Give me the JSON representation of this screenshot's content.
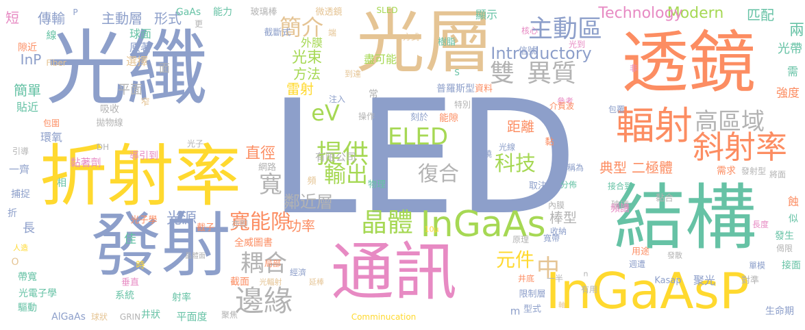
{
  "palette": {
    "blue": "#8d9fca",
    "green": "#66c2a5",
    "orange": "#fc8d62",
    "pink": "#e78ac3",
    "lime": "#a6d854",
    "yellow": "#ffd92f",
    "tan": "#e5c494",
    "gray": "#b3b3b3"
  },
  "words": [
    {
      "text": "LED",
      "c": "blue"
    },
    {
      "text": "光纖",
      "c": "blue"
    },
    {
      "text": "光層",
      "c": "tan"
    },
    {
      "text": "透鏡",
      "c": "orange"
    },
    {
      "text": "發射",
      "c": "blue"
    },
    {
      "text": "折射率",
      "c": "yellow"
    },
    {
      "text": "結構",
      "c": "green"
    },
    {
      "text": "通訊",
      "c": "pink"
    },
    {
      "text": "InGaAsP",
      "c": "yellow"
    },
    {
      "text": "輻射",
      "c": "orange"
    },
    {
      "text": "InGaAs",
      "c": "lime"
    },
    {
      "text": "斜射率",
      "c": "orange"
    },
    {
      "text": "邊緣",
      "c": "gray"
    },
    {
      "text": "主動區",
      "c": "blue"
    },
    {
      "text": "異質",
      "c": "gray"
    },
    {
      "text": "雙",
      "c": "gray"
    },
    {
      "text": "提供",
      "c": "lime"
    },
    {
      "text": "高區域",
      "c": "gray"
    },
    {
      "text": "晶體",
      "c": "lime"
    },
    {
      "text": "耦合",
      "c": "gray"
    },
    {
      "text": "寬能隙",
      "c": "orange"
    },
    {
      "text": "復合",
      "c": "gray"
    },
    {
      "text": "輸出",
      "c": "lime"
    },
    {
      "text": "eV",
      "c": "lime"
    },
    {
      "text": "ELED",
      "c": "lime"
    },
    {
      "text": "科技",
      "c": "lime"
    },
    {
      "text": "簡介",
      "c": "tan"
    },
    {
      "text": "元件",
      "c": "yellow"
    },
    {
      "text": "Modern",
      "c": "lime"
    },
    {
      "text": "Technology",
      "c": "pink"
    },
    {
      "text": "Introductory",
      "c": "blue"
    },
    {
      "text": "主動層",
      "c": "blue"
    },
    {
      "text": "形式",
      "c": "blue"
    },
    {
      "text": "傳輸",
      "c": "blue"
    },
    {
      "text": "匹配",
      "c": "green"
    },
    {
      "text": "光束",
      "c": "lime"
    },
    {
      "text": "方法",
      "c": "lime"
    },
    {
      "text": "雷射",
      "c": "yellow"
    },
    {
      "text": "外膜",
      "c": "lime"
    },
    {
      "text": "鄰近層",
      "c": "gray"
    },
    {
      "text": "功率",
      "c": "orange"
    },
    {
      "text": "直徑",
      "c": "orange"
    },
    {
      "text": "光源",
      "c": "blue"
    },
    {
      "text": "寬",
      "c": "gray"
    },
    {
      "text": "中",
      "c": "tan"
    },
    {
      "text": "棒型",
      "c": "gray"
    },
    {
      "text": "距離",
      "c": "orange"
    },
    {
      "text": "典型",
      "c": "orange"
    },
    {
      "text": "二極體",
      "c": "orange"
    },
    {
      "text": "短",
      "c": "pink"
    },
    {
      "text": "簡單",
      "c": "green"
    },
    {
      "text": "InP",
      "c": "blue"
    },
    {
      "text": "平面",
      "c": "gray"
    },
    {
      "text": "兩",
      "c": "green"
    },
    {
      "text": "光帶",
      "c": "green"
    },
    {
      "text": "強度",
      "c": "orange"
    },
    {
      "text": "需",
      "c": "green"
    },
    {
      "text": "盡可能",
      "c": "lime"
    },
    {
      "text": "顯示",
      "c": "green"
    },
    {
      "text": "GaAs",
      "c": "green"
    },
    {
      "text": "能力",
      "c": "green"
    },
    {
      "text": "玻璃棒",
      "c": "gray"
    },
    {
      "text": "微透鏡",
      "c": "tan"
    },
    {
      "text": "SLED",
      "c": "lime"
    },
    {
      "text": "樹脂",
      "c": "green"
    },
    {
      "text": "球面",
      "c": "green"
    },
    {
      "text": "原著",
      "c": "blue"
    },
    {
      "text": "選擇",
      "c": "tan"
    },
    {
      "text": "面",
      "c": "gray"
    },
    {
      "text": "線",
      "c": "green"
    },
    {
      "text": "隙近",
      "c": "orange"
    },
    {
      "text": "貼近",
      "c": "green"
    },
    {
      "text": "吸收",
      "c": "gray"
    },
    {
      "text": "窄",
      "c": "tan"
    },
    {
      "text": "拋物線",
      "c": "gray"
    },
    {
      "text": "包圍",
      "c": "orange"
    },
    {
      "text": "環氧",
      "c": "blue"
    },
    {
      "text": "引導",
      "c": "gray"
    },
    {
      "text": "導引到",
      "c": "pink"
    },
    {
      "text": "黏著劑",
      "c": "pink"
    },
    {
      "text": "一齊",
      "c": "blue"
    },
    {
      "text": "相",
      "c": "green"
    },
    {
      "text": "捕捉",
      "c": "blue"
    },
    {
      "text": "折",
      "c": "blue"
    },
    {
      "text": "長",
      "c": "blue"
    },
    {
      "text": "佳",
      "c": "green"
    },
    {
      "text": "人造",
      "c": "yellow"
    },
    {
      "text": "O",
      "c": "tan"
    },
    {
      "text": "帶寬",
      "c": "green"
    },
    {
      "text": "時",
      "c": "yellow"
    },
    {
      "text": "光電子學",
      "c": "green"
    },
    {
      "text": "垂直",
      "c": "pink"
    },
    {
      "text": "系統",
      "c": "green"
    },
    {
      "text": "驅動",
      "c": "green"
    },
    {
      "text": "AlGaAs",
      "c": "blue"
    },
    {
      "text": "球狀",
      "c": "tan"
    },
    {
      "text": "GRIN",
      "c": "gray"
    },
    {
      "text": "井狀",
      "c": "green"
    },
    {
      "text": "射率",
      "c": "green"
    },
    {
      "text": "平面度",
      "c": "green"
    },
    {
      "text": "聚焦",
      "c": "gray"
    },
    {
      "text": "光子學",
      "c": "orange"
    },
    {
      "text": "光子",
      "c": "gray"
    },
    {
      "text": "DH",
      "c": "gray"
    },
    {
      "text": "亦即",
      "c": "gray"
    },
    {
      "text": "網路",
      "c": "gray"
    },
    {
      "text": "有限公司",
      "c": "gray"
    },
    {
      "text": "頻",
      "c": "tan"
    },
    {
      "text": "物理",
      "c": "green"
    },
    {
      "text": "截子",
      "c": "orange"
    },
    {
      "text": "全威圖書",
      "c": "orange"
    },
    {
      "text": "局部",
      "c": "orange"
    },
    {
      "text": "截面",
      "c": "orange"
    },
    {
      "text": "經濟",
      "c": "blue"
    },
    {
      "text": "光輻射",
      "c": "tan"
    },
    {
      "text": "延棒",
      "c": "tan"
    },
    {
      "text": "晶體面",
      "c": "gray"
    },
    {
      "text": "Comminucation",
      "c": "yellow"
    },
    {
      "text": "Fiber",
      "c": "tan"
    },
    {
      "text": "到達",
      "c": "tan"
    },
    {
      "text": "常",
      "c": "gray"
    },
    {
      "text": "注入",
      "c": "blue"
    },
    {
      "text": "操作",
      "c": "gray"
    },
    {
      "text": "刻於",
      "c": "blue"
    },
    {
      "text": "能隙",
      "c": "orange"
    },
    {
      "text": "普羅斯型",
      "c": "blue"
    },
    {
      "text": "資料",
      "c": "orange"
    },
    {
      "text": "特別",
      "c": "gray"
    },
    {
      "text": "參考",
      "c": "pink"
    },
    {
      "text": "介質波",
      "c": "orange"
    },
    {
      "text": "包覆",
      "c": "blue"
    },
    {
      "text": "環繞",
      "c": "blue"
    },
    {
      "text": "光線",
      "c": "blue"
    },
    {
      "text": "黏",
      "c": "orange"
    },
    {
      "text": "稱為",
      "c": "blue"
    },
    {
      "text": "取決",
      "c": "blue"
    },
    {
      "text": "需求",
      "c": "orange"
    },
    {
      "text": "發射型",
      "c": "gray"
    },
    {
      "text": "將面",
      "c": "gray"
    },
    {
      "text": "分佈",
      "c": "green"
    },
    {
      "text": "接合到",
      "c": "green"
    },
    {
      "text": "玻璃",
      "c": "gray"
    },
    {
      "text": "頻譜",
      "c": "pink"
    },
    {
      "text": "內膜",
      "c": "gray"
    },
    {
      "text": "黏合",
      "c": "gray"
    },
    {
      "text": "蝕",
      "c": "orange"
    },
    {
      "text": "似",
      "c": "green"
    },
    {
      "text": "長度",
      "c": "pink"
    },
    {
      "text": "發生",
      "c": "green"
    },
    {
      "text": "偈限",
      "c": "gray"
    },
    {
      "text": "收納",
      "c": "blue"
    },
    {
      "text": "原理",
      "c": "gray"
    },
    {
      "text": "寬帶",
      "c": "blue"
    },
    {
      "text": "10μ",
      "c": "yellow"
    },
    {
      "text": "用途",
      "c": "orange"
    },
    {
      "text": "接面",
      "c": "green"
    },
    {
      "text": "單模",
      "c": "blue"
    },
    {
      "text": "發散",
      "c": "gray"
    },
    {
      "text": "週遭",
      "c": "blue"
    },
    {
      "text": "聚光",
      "c": "blue"
    },
    {
      "text": "對準",
      "c": "gray"
    },
    {
      "text": "井底",
      "c": "orange"
    },
    {
      "text": "一半",
      "c": "gray"
    },
    {
      "text": "n",
      "c": "gray"
    },
    {
      "text": "限制層",
      "c": "blue"
    },
    {
      "text": "型式",
      "c": "blue"
    },
    {
      "text": "m",
      "c": "blue"
    },
    {
      "text": "Kasap",
      "c": "blue"
    },
    {
      "text": "有用",
      "c": "gray"
    },
    {
      "text": "軸",
      "c": "tan"
    },
    {
      "text": "生命期",
      "c": "blue"
    },
    {
      "text": "信號",
      "c": "blue"
    },
    {
      "text": "核心",
      "c": "pink"
    },
    {
      "text": "光到",
      "c": "pink"
    },
    {
      "text": "方式",
      "c": "tan"
    },
    {
      "text": "端",
      "c": "tan"
    },
    {
      "text": "截斷式",
      "c": "blue"
    },
    {
      "text": "更",
      "c": "gray"
    },
    {
      "text": "S",
      "c": "green"
    },
    {
      "text": "非",
      "c": "pink"
    },
    {
      "text": "P",
      "c": "blue"
    }
  ]
}
